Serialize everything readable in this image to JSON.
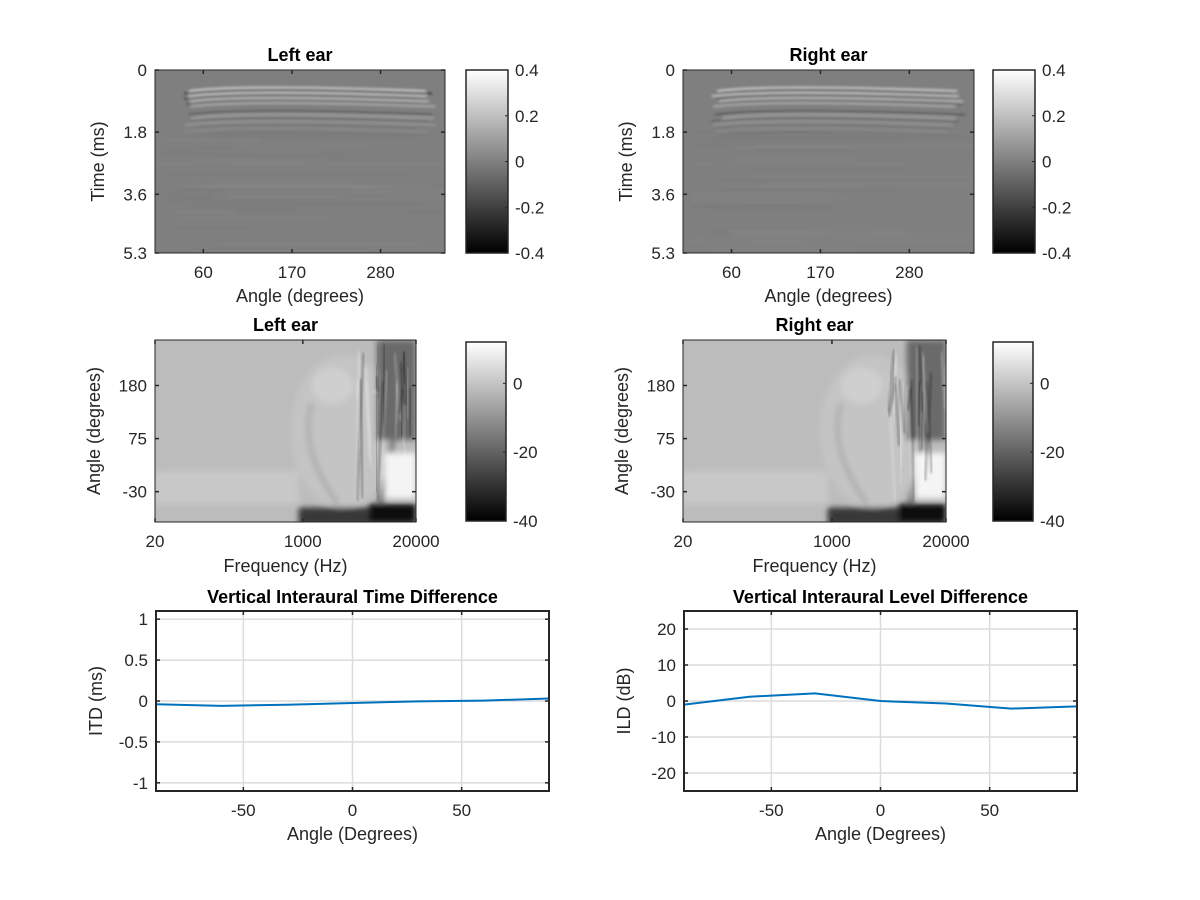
{
  "figure": {
    "background": "#ffffff",
    "line_color": "#0072bd",
    "grid_color": "#dcdcdc",
    "axis_color": "#262626"
  },
  "chart_data": [
    {
      "id": "hrir-left",
      "type": "heatmap",
      "title": "Left ear",
      "xlabel": "Angle (degrees)",
      "ylabel": "Time (ms)",
      "xticks": [
        "60",
        "170",
        "280"
      ],
      "xtick_values": [
        60,
        170,
        280
      ],
      "xlim": [
        0,
        360
      ],
      "yticks": [
        "0",
        "1.8",
        "3.6",
        "5.3"
      ],
      "ytick_values": [
        0,
        1.8,
        3.6,
        5.3
      ],
      "ylim": [
        0,
        5.3
      ],
      "y_reversed": true,
      "colormap": "gray",
      "clim": [
        -0.4,
        0.4
      ],
      "colorbar_ticks": [
        "0.4",
        "0.2",
        "0",
        "-0.2",
        "-0.4"
      ],
      "colorbar_tick_values": [
        0.4,
        0.2,
        0,
        -0.2,
        -0.4
      ],
      "description": "Impulse responses; strong oscillations near 0.4-1.2 ms across angles, most intense around 20-120 degrees, otherwise near 0"
    },
    {
      "id": "hrir-right",
      "type": "heatmap",
      "title": "Right ear",
      "xlabel": "Angle (degrees)",
      "ylabel": "Time (ms)",
      "xticks": [
        "60",
        "170",
        "280"
      ],
      "xtick_values": [
        60,
        170,
        280
      ],
      "xlim": [
        0,
        360
      ],
      "yticks": [
        "0",
        "1.8",
        "3.6",
        "5.3"
      ],
      "ytick_values": [
        0,
        1.8,
        3.6,
        5.3
      ],
      "ylim": [
        0,
        5.3
      ],
      "y_reversed": true,
      "colormap": "gray",
      "clim": [
        -0.4,
        0.4
      ],
      "colorbar_ticks": [
        "0.4",
        "0.2",
        "0",
        "-0.2",
        "-0.4"
      ],
      "colorbar_tick_values": [
        0.4,
        0.2,
        0,
        -0.2,
        -0.4
      ],
      "description": "Impulse responses; strong oscillations near 0.4-1.2 ms across angles, most intense around 20-120 degrees, otherwise near 0"
    },
    {
      "id": "hrtf-left",
      "type": "heatmap",
      "title": "Left ear",
      "xlabel": "Frequency (Hz)",
      "ylabel": "Angle (degrees)",
      "xticks": [
        "20",
        "1000",
        "20000"
      ],
      "xtick_values": [
        20,
        1000,
        20000
      ],
      "xscale": "log",
      "xlim": [
        20,
        20000
      ],
      "yticks": [
        "180",
        "75",
        "-30"
      ],
      "ytick_values": [
        180,
        75,
        -30
      ],
      "ylim": [
        -90,
        270
      ],
      "colormap": "gray",
      "clim": [
        -40,
        12
      ],
      "colorbar_ticks": [
        "0",
        "-20",
        "-40"
      ],
      "colorbar_tick_values": [
        0,
        -20,
        -40
      ],
      "description": "Magnitude (dB); flat ~0 dB below 1 kHz, notches and peaks above 3 kHz, dark region at low angles above 5 kHz"
    },
    {
      "id": "hrtf-right",
      "type": "heatmap",
      "title": "Right ear",
      "xlabel": "Frequency (Hz)",
      "ylabel": "Angle (degrees)",
      "xticks": [
        "20",
        "1000",
        "20000"
      ],
      "xtick_values": [
        20,
        1000,
        20000
      ],
      "xscale": "log",
      "xlim": [
        20,
        20000
      ],
      "yticks": [
        "180",
        "75",
        "-30"
      ],
      "ytick_values": [
        180,
        75,
        -30
      ],
      "ylim": [
        -90,
        270
      ],
      "colormap": "gray",
      "clim": [
        -40,
        12
      ],
      "colorbar_ticks": [
        "0",
        "-20",
        "-40"
      ],
      "colorbar_tick_values": [
        0,
        -20,
        -40
      ],
      "description": "Magnitude (dB); flat ~0 dB below 1 kHz, notches and peaks above 3 kHz, dark region at low angles above 5 kHz"
    },
    {
      "id": "itd",
      "type": "line",
      "title": "Vertical Interaural Time Difference",
      "xlabel": "Angle (Degrees)",
      "ylabel": "ITD (ms)",
      "xlim": [
        -90,
        90
      ],
      "ylim": [
        -1.1,
        1.1
      ],
      "xticks": [
        "-50",
        "0",
        "50"
      ],
      "xtick_values": [
        -50,
        0,
        50
      ],
      "yticks": [
        "1",
        "0.5",
        "0",
        "-0.5",
        "-1"
      ],
      "ytick_values": [
        1,
        0.5,
        0,
        -0.5,
        -1
      ],
      "grid": true,
      "series": [
        {
          "name": "ITD",
          "x": [
            -90,
            -60,
            -30,
            0,
            30,
            60,
            90
          ],
          "y": [
            -0.04,
            -0.06,
            -0.045,
            -0.025,
            -0.005,
            0.005,
            0.03
          ]
        }
      ]
    },
    {
      "id": "ild",
      "type": "line",
      "title": "Vertical Interaural Level Difference",
      "xlabel": "Angle (Degrees)",
      "ylabel": "ILD (dB)",
      "xlim": [
        -90,
        90
      ],
      "ylim": [
        -25,
        25
      ],
      "xticks": [
        "-50",
        "0",
        "50"
      ],
      "xtick_values": [
        -50,
        0,
        50
      ],
      "yticks": [
        "20",
        "10",
        "0",
        "-10",
        "-20"
      ],
      "ytick_values": [
        20,
        10,
        0,
        -10,
        -20
      ],
      "grid": true,
      "series": [
        {
          "name": "ILD",
          "x": [
            -90,
            -60,
            -30,
            0,
            30,
            60,
            90
          ],
          "y": [
            -1.0,
            1.2,
            2.1,
            0.0,
            -0.7,
            -2.1,
            -1.5
          ]
        }
      ]
    }
  ]
}
